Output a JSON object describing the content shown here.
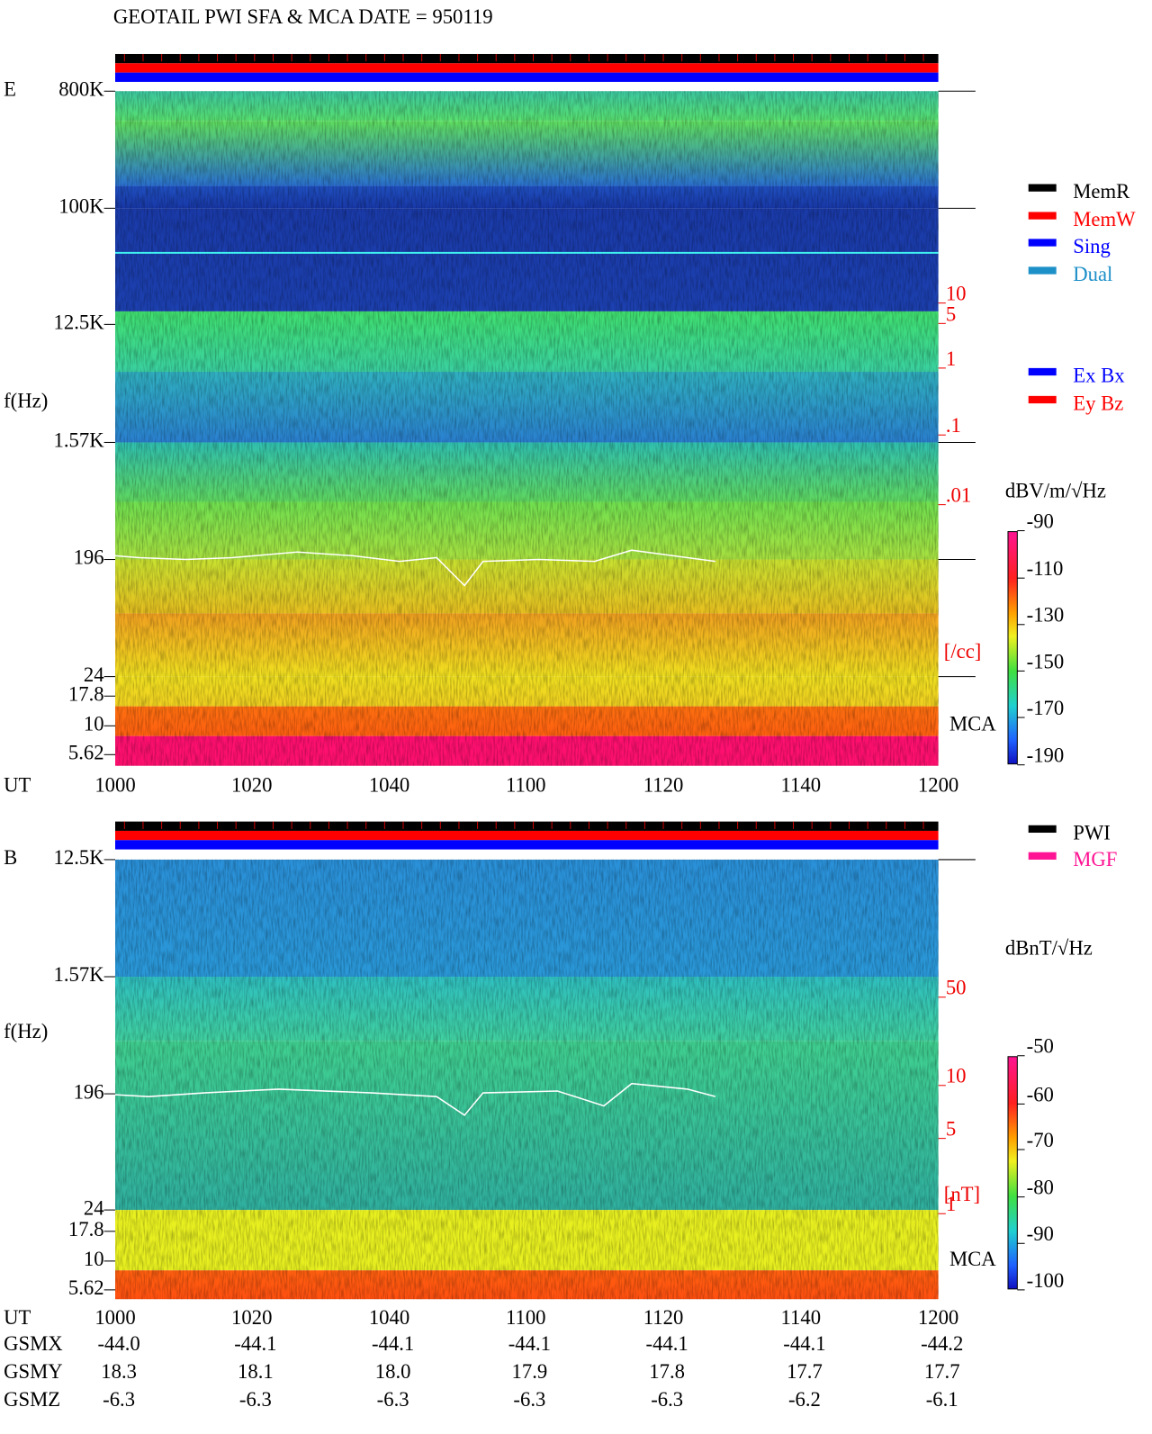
{
  "title": "GEOTAIL  PWI SFA & MCA   DATE = 950119",
  "panels": [
    {
      "label": "E",
      "y_label": "f(Hz)",
      "x_label": "UT",
      "mca_label": "MCA",
      "freq_ticks": [
        "800K",
        "100K",
        "12.5K",
        "1.57K",
        "196",
        "24",
        "17.8",
        "10",
        "5.62"
      ],
      "time_ticks": [
        "1000",
        "1020",
        "1040",
        "1100",
        "1120",
        "1140",
        "1200"
      ],
      "right_ticks": [
        "10",
        "5",
        "1",
        ".1",
        ".01"
      ],
      "right_unit": "[/cc]",
      "colorbar_unit": "dBV/m/√Hz",
      "colorbar_ticks": [
        -90,
        -110,
        -130,
        -150,
        -170,
        -190
      ],
      "legend": [
        {
          "name": "MemR",
          "color": "#000000"
        },
        {
          "name": "MemW",
          "color": "#ff0000"
        },
        {
          "name": "Sing",
          "color": "#0000ff"
        },
        {
          "name": "Dual",
          "color": "#1e90c8"
        },
        {
          "name": "Ex Bx",
          "color": "#0000ff"
        },
        {
          "name": "Ey Bz",
          "color": "#ff0000"
        }
      ]
    },
    {
      "label": "B",
      "y_label": "f(Hz)",
      "x_label": "UT",
      "mca_label": "MCA",
      "freq_ticks": [
        "12.5K",
        "1.57K",
        "196",
        "24",
        "17.8",
        "10",
        "5.62"
      ],
      "time_ticks": [
        "1000",
        "1020",
        "1040",
        "1100",
        "1120",
        "1140",
        "1200"
      ],
      "right_ticks": [
        "50",
        "10",
        "5",
        "1"
      ],
      "right_unit": "[nT]",
      "colorbar_unit": "dBnT/√Hz",
      "colorbar_ticks": [
        -50,
        -60,
        -70,
        -80,
        -90,
        -100
      ],
      "legend": [
        {
          "name": "PWI",
          "color": "#000000"
        },
        {
          "name": "MGF",
          "color": "#ff1493"
        }
      ]
    }
  ],
  "orbit": {
    "rows": [
      {
        "name": "GSMX",
        "values": [
          "-44.0",
          "-44.1",
          "-44.1",
          "-44.1",
          "-44.1",
          "-44.1",
          "-44.2"
        ]
      },
      {
        "name": "GSMY",
        "values": [
          "18.3",
          "18.1",
          "18.0",
          "17.9",
          "17.8",
          "17.7",
          "17.7"
        ]
      },
      {
        "name": "GSMZ",
        "values": [
          "-6.3",
          "-6.3",
          "-6.3",
          "-6.3",
          "-6.3",
          "-6.2",
          "-6.1"
        ]
      }
    ]
  }
}
